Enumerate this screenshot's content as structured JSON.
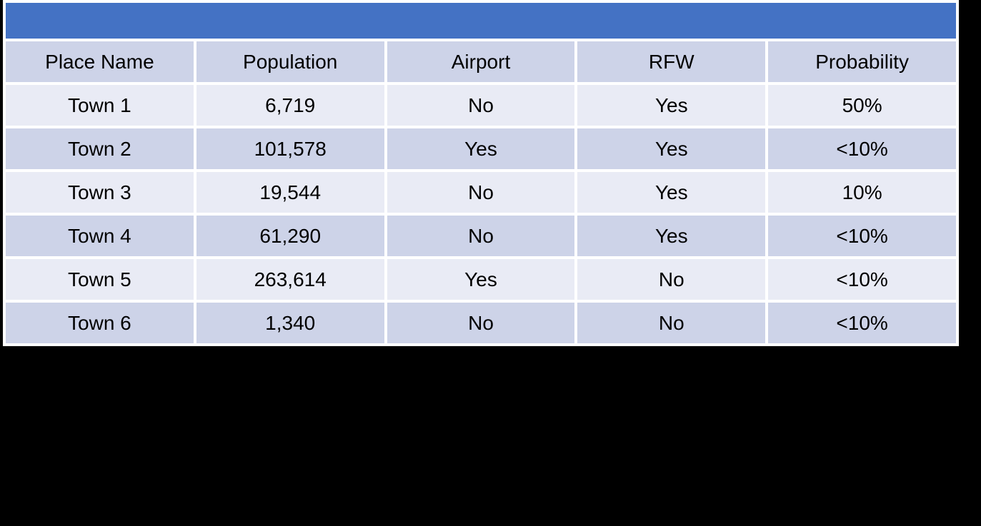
{
  "banner": {
    "label": ""
  },
  "table": {
    "columns": [
      "Place Name",
      "Population",
      "Airport",
      "RFW",
      "Probability"
    ],
    "rows": [
      {
        "place": "Town 1",
        "population": "6,719",
        "airport": "No",
        "rfw": "Yes",
        "probability": "50%"
      },
      {
        "place": "Town 2",
        "population": "101,578",
        "airport": "Yes",
        "rfw": "Yes",
        "probability": "<10%"
      },
      {
        "place": "Town 3",
        "population": "19,544",
        "airport": "No",
        "rfw": "Yes",
        "probability": "10%"
      },
      {
        "place": "Town 4",
        "population": "61,290",
        "airport": "No",
        "rfw": "Yes",
        "probability": "<10%"
      },
      {
        "place": "Town 5",
        "population": "263,614",
        "airport": "Yes",
        "rfw": "No",
        "probability": "<10%"
      },
      {
        "place": "Town 6",
        "population": "1,340",
        "airport": "No",
        "rfw": "No",
        "probability": "<10%"
      }
    ]
  },
  "colors": {
    "banner_blue": "#4472C4",
    "row_light": "#E9EBF5",
    "row_dark": "#CDD3E8",
    "grid_white": "#FFFFFF",
    "page_background": "#000000",
    "text": "#000000"
  },
  "chart_data": {
    "type": "table",
    "title": "",
    "columns": [
      "Place Name",
      "Population",
      "Airport",
      "RFW",
      "Probability"
    ],
    "rows": [
      [
        "Town 1",
        "6,719",
        "No",
        "Yes",
        "50%"
      ],
      [
        "Town 2",
        "101,578",
        "Yes",
        "Yes",
        "<10%"
      ],
      [
        "Town 3",
        "19,544",
        "No",
        "Yes",
        "10%"
      ],
      [
        "Town 4",
        "61,290",
        "No",
        "Yes",
        "<10%"
      ],
      [
        "Town 5",
        "263,614",
        "Yes",
        "No",
        "<10%"
      ],
      [
        "Town 6",
        "1,340",
        "No",
        "No",
        "<10%"
      ]
    ],
    "layout_hints": {
      "banner_header_row": "empty blue merged row above column headers",
      "banding": "column-header row and even data rows dark lavender, odd data rows light lavender",
      "alignment": "all cells centered"
    }
  }
}
